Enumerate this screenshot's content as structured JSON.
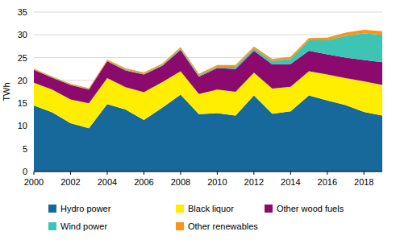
{
  "chart_data": {
    "type": "area",
    "stacked": true,
    "grid": true,
    "legend": "bottom",
    "y_label": "TWh",
    "x": [
      2000,
      2001,
      2002,
      2003,
      2004,
      2005,
      2006,
      2007,
      2008,
      2009,
      2010,
      2011,
      2012,
      2013,
      2014,
      2015,
      2016,
      2017,
      2018,
      2019
    ],
    "xlim": [
      2000,
      2019
    ],
    "xticks": [
      2000,
      2002,
      2004,
      2006,
      2008,
      2010,
      2012,
      2014,
      2016,
      2018
    ],
    "ylim": [
      0,
      35
    ],
    "yticks": [
      0,
      5,
      10,
      15,
      20,
      25,
      30,
      35
    ],
    "series": [
      {
        "name": "Hydro power",
        "color": "#17699c",
        "values": [
          14.5,
          13.0,
          10.6,
          9.5,
          14.8,
          13.6,
          11.3,
          14.0,
          16.9,
          12.6,
          12.8,
          12.3,
          16.7,
          12.7,
          13.2,
          16.7,
          15.6,
          14.6,
          13.1,
          12.3
        ]
      },
      {
        "name": "Black liquor",
        "color": "#ffee00",
        "values": [
          5.0,
          5.0,
          5.2,
          5.5,
          5.7,
          4.9,
          6.1,
          5.6,
          5.1,
          4.4,
          5.2,
          5.2,
          5.0,
          5.5,
          5.4,
          5.3,
          5.7,
          5.9,
          6.7,
          6.7
        ]
      },
      {
        "name": "Other wood fuels",
        "color": "#8c0a6e",
        "values": [
          2.8,
          2.6,
          3.2,
          3.0,
          3.7,
          3.7,
          3.9,
          3.6,
          4.7,
          3.8,
          4.7,
          5.0,
          4.8,
          5.3,
          5.0,
          4.5,
          4.4,
          4.5,
          4.7,
          5.0
        ]
      },
      {
        "name": "Wind power",
        "color": "#3cc5b4",
        "values": [
          0.08,
          0.07,
          0.06,
          0.09,
          0.12,
          0.17,
          0.15,
          0.19,
          0.26,
          0.28,
          0.29,
          0.48,
          0.49,
          0.77,
          1.1,
          2.3,
          3.1,
          4.8,
          5.8,
          6.0
        ]
      },
      {
        "name": "Other renewables",
        "color": "#f7941d",
        "values": [
          0.2,
          0.2,
          0.2,
          0.2,
          0.25,
          0.3,
          0.3,
          0.3,
          0.35,
          0.35,
          0.4,
          0.4,
          0.45,
          0.45,
          0.5,
          0.5,
          0.6,
          0.7,
          0.8,
          0.8
        ]
      }
    ]
  }
}
